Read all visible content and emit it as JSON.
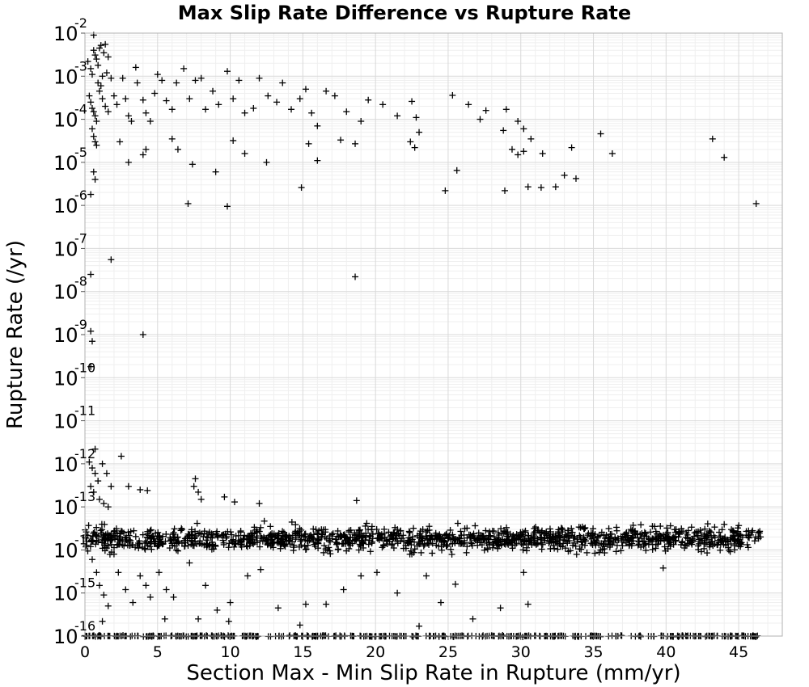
{
  "chart_data": {
    "type": "scatter",
    "title": "Max Slip Rate Difference vs Rupture Rate",
    "xlabel": "Section Max - Min Slip Rate in Rupture (mm/yr)",
    "ylabel": "Rupture Rate (/yr)",
    "xlim": [
      0,
      48
    ],
    "ylim": [
      1e-16,
      0.01
    ],
    "y_scale": "log",
    "grid": true,
    "marker": "+",
    "marker_color": "#000000",
    "x_ticks": [
      0,
      5,
      10,
      15,
      20,
      25,
      30,
      35,
      40,
      45
    ],
    "y_tick_exponents": [
      -2,
      -3,
      -4,
      -5,
      -6,
      -7,
      -8,
      -9,
      -10,
      -11,
      -12,
      -13,
      -14,
      -15,
      -16
    ],
    "y_tick_base": "10",
    "series": [
      {
        "points": [
          [
            0.2,
            0.0022
          ],
          [
            0.4,
            0.0015
          ],
          [
            0.6,
            0.009
          ],
          [
            0.6,
            0.004
          ],
          [
            0.7,
            0.0031
          ],
          [
            0.8,
            0.0025
          ],
          [
            0.9,
            0.0018
          ],
          [
            1.0,
            0.0045
          ],
          [
            1.1,
            0.0052
          ],
          [
            1.3,
            0.0035
          ],
          [
            1.4,
            0.0055
          ],
          [
            1.6,
            0.0028
          ],
          [
            1.5,
            0.0012
          ],
          [
            1.8,
            0.0009
          ],
          [
            1.2,
            0.001
          ],
          [
            0.5,
            0.0011
          ],
          [
            0.3,
            0.00035
          ],
          [
            0.4,
            0.00025
          ],
          [
            0.5,
            0.00018
          ],
          [
            0.6,
            0.00015
          ],
          [
            0.7,
            0.00012
          ],
          [
            0.8,
            9e-05
          ],
          [
            0.5,
            6e-05
          ],
          [
            0.6,
            4e-05
          ],
          [
            0.7,
            3e-05
          ],
          [
            0.8,
            2.5e-05
          ],
          [
            1.0,
            0.00045
          ],
          [
            1.2,
            0.0003
          ],
          [
            1.4,
            0.0002
          ],
          [
            1.6,
            0.00015
          ],
          [
            0.9,
            0.0007
          ],
          [
            1.1,
            0.0006
          ],
          [
            2.0,
            0.00035
          ],
          [
            2.2,
            0.00022
          ],
          [
            2.6,
            0.0009
          ],
          [
            2.8,
            0.0003
          ],
          [
            3.0,
            0.00012
          ],
          [
            3.2,
            9e-05
          ],
          [
            3.5,
            0.0016
          ],
          [
            3.6,
            0.0007
          ],
          [
            4.0,
            0.00028
          ],
          [
            4.2,
            0.00014
          ],
          [
            4.5,
            9e-05
          ],
          [
            4.8,
            0.0004
          ],
          [
            5.0,
            0.0011
          ],
          [
            5.3,
            0.0008
          ],
          [
            5.6,
            0.00027
          ],
          [
            6.0,
            0.00017
          ],
          [
            6.3,
            0.0007
          ],
          [
            6.8,
            0.0015
          ],
          [
            7.2,
            0.0003
          ],
          [
            7.6,
            0.0008
          ],
          [
            8.0,
            0.0009
          ],
          [
            8.3,
            0.00017
          ],
          [
            8.8,
            0.00045
          ],
          [
            9.2,
            0.00022
          ],
          [
            9.8,
            0.0013
          ],
          [
            10.2,
            0.0003
          ],
          [
            10.6,
            0.0008
          ],
          [
            11.0,
            0.00014
          ],
          [
            11.6,
            0.00018
          ],
          [
            12.0,
            0.0009
          ],
          [
            12.6,
            0.00035
          ],
          [
            13.2,
            0.00025
          ],
          [
            13.6,
            0.0007
          ],
          [
            14.2,
            0.00017
          ],
          [
            14.8,
            0.0003
          ],
          [
            15.2,
            0.0005
          ],
          [
            15.6,
            0.00014
          ],
          [
            16.0,
            7e-05
          ],
          [
            16.6,
            0.00045
          ],
          [
            17.2,
            0.00035
          ],
          [
            18.0,
            0.00015
          ],
          [
            19.0,
            9e-05
          ],
          [
            2.4,
            3e-05
          ],
          [
            3.0,
            1e-05
          ],
          [
            4.0,
            1.5e-05
          ],
          [
            4.2,
            2e-05
          ],
          [
            6.0,
            3.5e-05
          ],
          [
            6.4,
            2e-05
          ],
          [
            7.4,
            9e-06
          ],
          [
            9.0,
            6e-06
          ],
          [
            10.2,
            3.2e-05
          ],
          [
            11.0,
            1.6e-05
          ],
          [
            12.5,
            1e-05
          ],
          [
            15.4,
            2.7e-05
          ],
          [
            16.0,
            1.1e-05
          ],
          [
            17.6,
            3.3e-05
          ],
          [
            18.6,
            2.7e-05
          ],
          [
            19.5,
            0.00028
          ],
          [
            20.5,
            0.00022
          ],
          [
            21.5,
            0.00012
          ],
          [
            22.5,
            0.00026
          ],
          [
            22.8,
            0.00011
          ],
          [
            22.4,
            3e-05
          ],
          [
            22.7,
            2.2e-05
          ],
          [
            23.0,
            5e-05
          ],
          [
            25.3,
            0.00036
          ],
          [
            26.4,
            0.00022
          ],
          [
            27.2,
            0.0001
          ],
          [
            27.6,
            0.00016
          ],
          [
            28.8,
            5.5e-05
          ],
          [
            29.0,
            0.00017
          ],
          [
            29.8,
            9e-05
          ],
          [
            30.2,
            6e-05
          ],
          [
            30.7,
            3.5e-05
          ],
          [
            29.4,
            2e-05
          ],
          [
            29.8,
            1.5e-05
          ],
          [
            30.2,
            1.8e-05
          ],
          [
            31.5,
            1.6e-05
          ],
          [
            33.5,
            2.2e-05
          ],
          [
            35.5,
            4.6e-05
          ],
          [
            36.3,
            1.6e-05
          ],
          [
            43.2,
            3.5e-05
          ],
          [
            44.0,
            1.3e-05
          ],
          [
            0.6,
            6e-06
          ],
          [
            0.7,
            4e-06
          ],
          [
            0.4,
            1.8e-06
          ],
          [
            25.6,
            6.5e-06
          ],
          [
            24.8,
            2.2e-06
          ],
          [
            28.9,
            2.2e-06
          ],
          [
            30.5,
            2.7e-06
          ],
          [
            31.4,
            2.6e-06
          ],
          [
            32.4,
            2.7e-06
          ],
          [
            33.0,
            5e-06
          ],
          [
            33.8,
            4.2e-06
          ],
          [
            14.9,
            2.6e-06
          ],
          [
            7.1,
            1.1e-06
          ],
          [
            9.8,
            9.5e-07
          ],
          [
            46.2,
            1.1e-06
          ],
          [
            1.8,
            5.5e-08
          ],
          [
            0.4,
            2.5e-08
          ],
          [
            18.6,
            2.2e-08
          ],
          [
            0.4,
            1.2e-09
          ],
          [
            0.5,
            7e-10
          ],
          [
            4.0,
            1e-09
          ],
          [
            0.4,
            1.8e-10
          ],
          [
            0.7,
            2.2e-12
          ],
          [
            2.5,
            1.5e-12
          ],
          [
            0.3,
            1.1e-12
          ],
          [
            0.5,
            8e-13
          ],
          [
            0.7,
            6e-13
          ],
          [
            0.9,
            4e-13
          ],
          [
            1.2,
            1e-12
          ],
          [
            1.5,
            6e-13
          ],
          [
            1.8,
            3e-13
          ],
          [
            0.4,
            3e-13
          ],
          [
            0.6,
            2.2e-13
          ],
          [
            1.0,
            1.5e-13
          ],
          [
            1.3,
            1.2e-13
          ],
          [
            1.6,
            1e-13
          ],
          [
            3.0,
            3e-13
          ],
          [
            3.8,
            2.5e-13
          ],
          [
            4.3,
            2.4e-13
          ],
          [
            7.5,
            3e-13
          ],
          [
            7.8,
            2.2e-13
          ],
          [
            7.6,
            4.5e-13
          ],
          [
            8.0,
            1.5e-13
          ],
          [
            9.6,
            1.7e-13
          ],
          [
            10.3,
            1.3e-13
          ],
          [
            12.0,
            1.2e-13
          ],
          [
            18.7,
            1.4e-13
          ],
          [
            0.5,
            6e-15
          ],
          [
            0.8,
            3e-15
          ],
          [
            1.0,
            1.5e-15
          ],
          [
            1.3,
            9e-16
          ],
          [
            1.6,
            5e-16
          ],
          [
            2.0,
            8e-15
          ],
          [
            2.3,
            3e-15
          ],
          [
            2.8,
            1.2e-15
          ],
          [
            3.3,
            6e-16
          ],
          [
            3.8,
            2.5e-15
          ],
          [
            4.2,
            1.5e-15
          ],
          [
            4.5,
            8e-16
          ],
          [
            5.1,
            3e-15
          ],
          [
            5.6,
            1.2e-15
          ],
          [
            6.1,
            8e-16
          ],
          [
            7.2,
            5e-15
          ],
          [
            7.8,
            2.5e-16
          ],
          [
            8.3,
            1.5e-15
          ],
          [
            9.1,
            4e-16
          ],
          [
            10.0,
            6e-16
          ],
          [
            11.2,
            2.5e-15
          ],
          [
            12.1,
            3.5e-15
          ],
          [
            13.3,
            4.5e-16
          ],
          [
            15.2,
            5.5e-16
          ],
          [
            16.6,
            5.5e-16
          ],
          [
            17.8,
            1.2e-15
          ],
          [
            19.0,
            2.5e-15
          ],
          [
            20.1,
            3e-15
          ],
          [
            21.5,
            1e-15
          ],
          [
            22.5,
            8e-15
          ],
          [
            23.5,
            2.5e-15
          ],
          [
            24.5,
            6e-16
          ],
          [
            25.5,
            1.6e-15
          ],
          [
            26.7,
            2.5e-16
          ],
          [
            28.6,
            4.5e-16
          ],
          [
            30.5,
            5.5e-16
          ],
          [
            30.2,
            3e-15
          ],
          [
            39.8,
            3.8e-15
          ],
          [
            1.2,
            2.2e-16
          ],
          [
            5.5,
            2.5e-16
          ],
          [
            9.9,
            2.2e-16
          ],
          [
            14.8,
            1.8e-16
          ],
          [
            23.0,
            1.7e-16
          ]
        ]
      }
    ],
    "bands": [
      {
        "x_range": [
          0,
          46.5
        ],
        "y_center": 1.8e-14,
        "y_spread_decades": 0.28,
        "count": 1400
      },
      {
        "x_range": [
          0,
          46.5
        ],
        "y_center": 1e-16,
        "y_spread_decades": 0.015,
        "count": 420
      }
    ]
  }
}
